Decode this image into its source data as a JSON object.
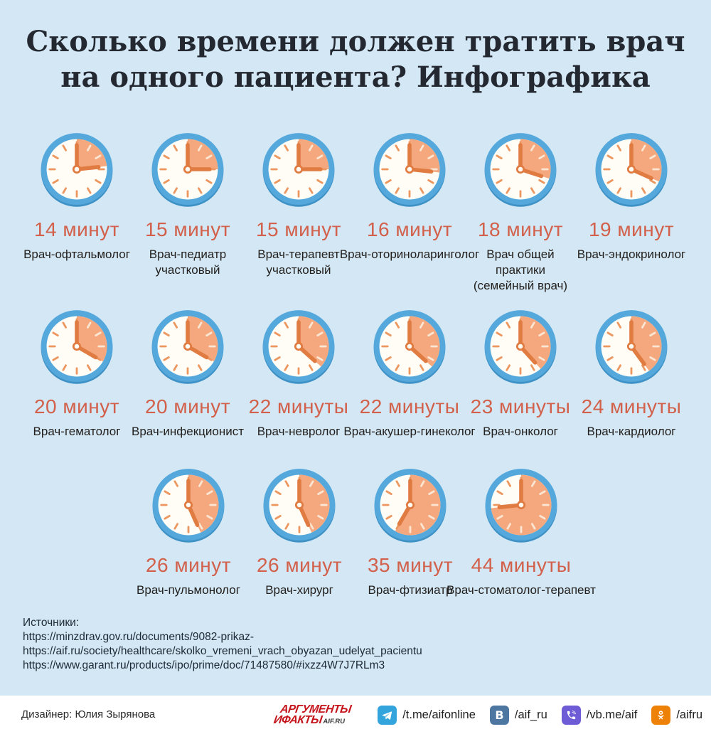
{
  "chart_data": {
    "type": "table",
    "title": "Сколько времени должен тратить врач на одного пациента? Инфографика",
    "unit": "минуты",
    "categories": [
      "Врач-офтальмолог",
      "Врач-педиатр участковый",
      "Врач-терапевт участковый",
      "Врач-оториноларинголог",
      "Врач общей практики (семейный врач)",
      "Врач-эндокринолог",
      "Врач-гематолог",
      "Врач-инфекционист",
      "Врач-невролог",
      "Врач-акушер-гинеколог",
      "Врач-онколог",
      "Врач-кардиолог",
      "Врач-пульмонолог",
      "Врач-хирург",
      "Врач-фтизиатр",
      "Врач-стоматолог-терапевт"
    ],
    "values": [
      14,
      15,
      15,
      16,
      18,
      19,
      20,
      20,
      22,
      22,
      23,
      24,
      26,
      26,
      35,
      44
    ]
  },
  "title": {
    "line1": "Сколько времени должен тратить врач",
    "line2": "на одного пациента? Инфографика"
  },
  "rows": [
    {
      "cells": [
        {
          "minutes": 14,
          "time": "14 минут",
          "doctor_lines": [
            "Врач-офтальмолог"
          ]
        },
        {
          "minutes": 15,
          "time": "15 минут",
          "doctor_lines": [
            "Врач-педиатр",
            "участковый"
          ]
        },
        {
          "minutes": 15,
          "time": "15 минут",
          "doctor_lines": [
            "Врач-терапевт",
            "участковый"
          ]
        },
        {
          "minutes": 16,
          "time": "16 минут",
          "doctor_lines": [
            "Врач-оториноларинголог"
          ]
        },
        {
          "minutes": 18,
          "time": "18 минут",
          "doctor_lines": [
            "Врач общей",
            "практики",
            "(семейный врач)"
          ]
        },
        {
          "minutes": 19,
          "time": "19 минут",
          "doctor_lines": [
            "Врач-эндокринолог"
          ]
        }
      ]
    },
    {
      "cells": [
        {
          "minutes": 20,
          "time": "20 минут",
          "doctor_lines": [
            "Врач-гематолог"
          ]
        },
        {
          "minutes": 20,
          "time": "20 минут",
          "doctor_lines": [
            "Врач-инфекционист"
          ]
        },
        {
          "minutes": 22,
          "time": "22 минуты",
          "doctor_lines": [
            "Врач-невролог"
          ]
        },
        {
          "minutes": 22,
          "time": "22 минуты",
          "doctor_lines": [
            "Врач-акушер-гинеколог"
          ]
        },
        {
          "minutes": 23,
          "time": "23 минуты",
          "doctor_lines": [
            "Врач-онколог"
          ]
        },
        {
          "minutes": 24,
          "time": "24 минуты",
          "doctor_lines": [
            "Врач-кардиолог"
          ]
        }
      ]
    },
    {
      "cells": [
        {
          "minutes": 26,
          "time": "26 минут",
          "doctor_lines": [
            "Врач-пульмонолог"
          ]
        },
        {
          "minutes": 26,
          "time": "26 минут",
          "doctor_lines": [
            "Врач-хирург"
          ]
        },
        {
          "minutes": 35,
          "time": "35 минут",
          "doctor_lines": [
            "Врач-фтизиатр"
          ]
        },
        {
          "minutes": 44,
          "time": "44 минуты",
          "doctor_lines": [
            "Врач-стоматолог-терапевт"
          ]
        }
      ]
    }
  ],
  "sources": {
    "heading": "Источники:",
    "links": [
      "https://minzdrav.gov.ru/documents/9082-prikaz-",
      "https://aif.ru/society/healthcare/skolko_vremeni_vrach_obyazan_udelyat_pacientu",
      "https://www.garant.ru/products/ipo/prime/doc/71487580/#ixzz4W7J7RLm3"
    ]
  },
  "footer": {
    "designer": "Дизайнер: Юлия Зырянова",
    "brand": {
      "top": "АРГУМЕНТЫ",
      "bottom": "ИФАКТЫ",
      "site": "AIF.RU"
    },
    "socials": [
      {
        "icon": "telegram-icon",
        "handle": "/t.me/aifonline",
        "color": "#34a4dd"
      },
      {
        "icon": "vk-icon",
        "handle": "/aif_ru",
        "color": "#4d76a1"
      },
      {
        "icon": "viber-icon",
        "handle": "/vb.me/aif",
        "color": "#6d5cd6"
      },
      {
        "icon": "ok-icon",
        "handle": "/aifru",
        "color": "#ee8208"
      }
    ]
  },
  "colors": {
    "background": "#d3e7f5",
    "title_text": "#242831",
    "ring": "#55a8db",
    "ring_shadow": "#3e91c5",
    "face": "#fffdf5",
    "slice": "#f5a87d",
    "tick": "#ec9760",
    "tick_light": "#fbe6d4",
    "hand": "#e07b42",
    "time_text": "#d2604a",
    "label_text": "#23201d",
    "sources_text": "#1d2935",
    "designer_text": "#2a2a2a",
    "brand_red": "#c4151c",
    "footer_bg": "#ffffff"
  }
}
